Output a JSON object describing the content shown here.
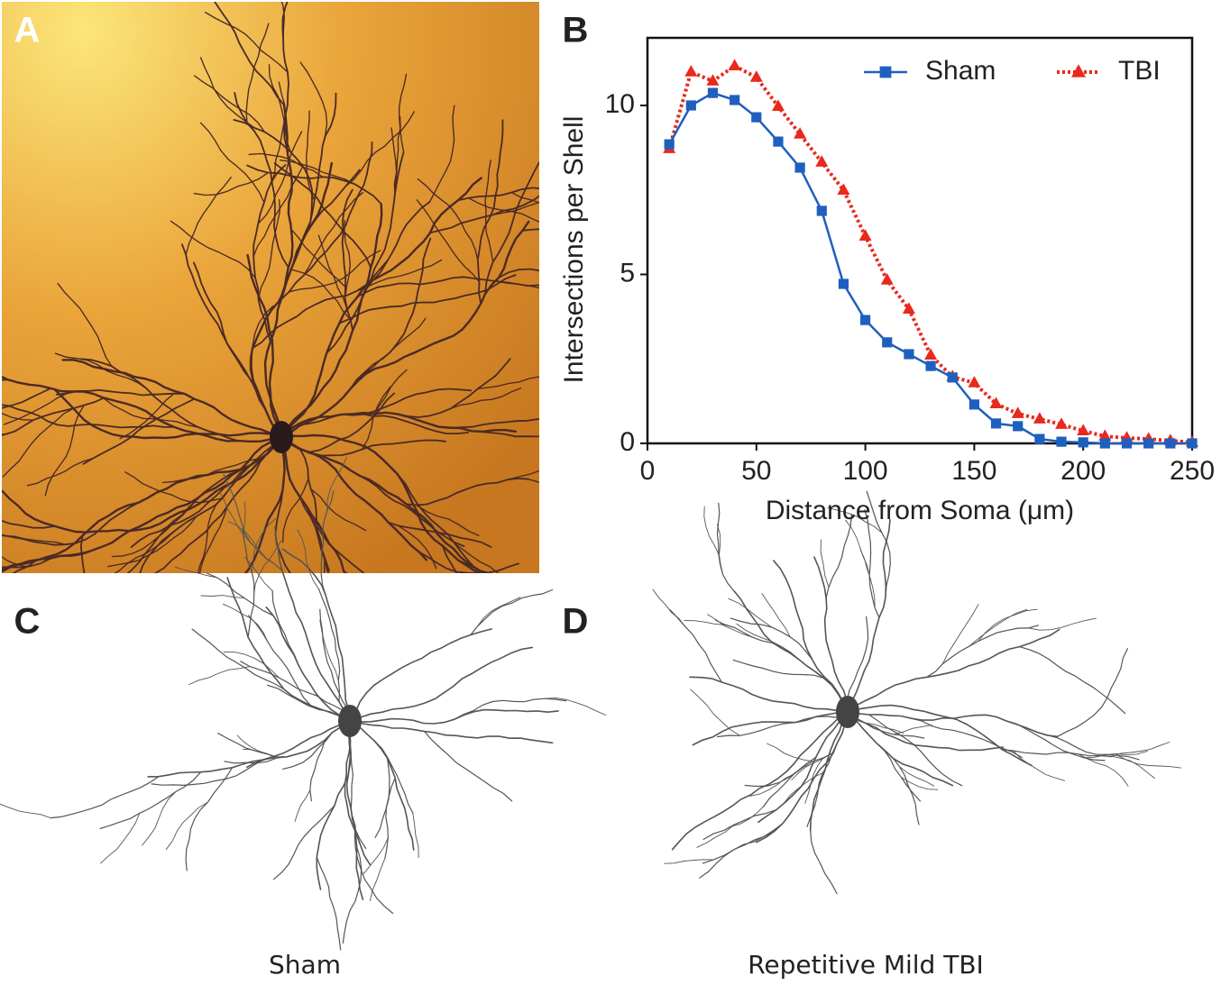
{
  "panel_labels": [
    "A",
    "B",
    "C",
    "D"
  ],
  "captions": {
    "C": "Sham",
    "D": "Repetitive Mild TBI"
  },
  "chart_data": {
    "type": "line",
    "x_label": "Distance from Soma (μm)",
    "y_label": "Intersections per Shell",
    "x": [
      10,
      20,
      30,
      40,
      50,
      60,
      70,
      80,
      90,
      100,
      110,
      120,
      130,
      140,
      150,
      160,
      170,
      180,
      190,
      200,
      210,
      220,
      230,
      240,
      250
    ],
    "series": [
      {
        "name": "Sham",
        "color": "#1f5fbf",
        "marker": "square",
        "dash": "solid",
        "values": [
          8.85,
          10.0,
          10.37,
          10.16,
          9.65,
          8.93,
          8.16,
          6.88,
          4.72,
          3.65,
          2.99,
          2.64,
          2.29,
          1.95,
          1.15,
          0.59,
          0.51,
          0.13,
          0.05,
          0.03,
          0,
          0,
          0,
          0,
          0
        ]
      },
      {
        "name": "TBI",
        "color": "#e8291c",
        "marker": "triangle",
        "dash": "dotted",
        "values": [
          8.72,
          10.99,
          10.72,
          11.17,
          10.83,
          9.97,
          9.15,
          8.32,
          7.49,
          6.13,
          4.83,
          3.97,
          2.61,
          1.97,
          1.79,
          1.17,
          0.88,
          0.72,
          0.56,
          0.37,
          0.21,
          0.16,
          0.13,
          0.08,
          0.03
        ]
      }
    ],
    "xlim": [
      0,
      250
    ],
    "xticks": [
      0,
      50,
      100,
      150,
      200,
      250
    ],
    "ylim": [
      0,
      12
    ],
    "yticks": [
      0,
      5,
      10
    ],
    "legend": "top-right",
    "grid": false
  }
}
